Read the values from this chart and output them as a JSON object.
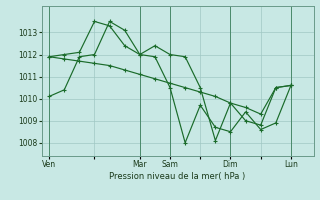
{
  "background_color": "#c8e8e4",
  "grid_color": "#a0c8c4",
  "line_color": "#1a6b2a",
  "marker_color": "#1a6b2a",
  "xlabel": "Pression niveau de la mer( hPa )",
  "ylim": [
    1007.4,
    1014.2
  ],
  "yticks": [
    1008,
    1009,
    1010,
    1011,
    1012,
    1013
  ],
  "xtick_labels": [
    "Ven",
    "",
    "Mar",
    "Sam",
    "",
    "Dim",
    "",
    "Lun"
  ],
  "xtick_positions": [
    0,
    3,
    6,
    8,
    10,
    12,
    14,
    16
  ],
  "xlim": [
    -0.5,
    17.5
  ],
  "vlines": [
    0,
    6,
    8,
    12,
    16
  ],
  "line1_x": [
    0,
    1,
    2,
    3,
    4,
    5,
    6,
    7,
    8,
    9,
    10,
    11,
    12,
    13,
    14,
    15,
    16
  ],
  "line1_y": [
    1010.1,
    1010.4,
    1011.9,
    1012.0,
    1013.5,
    1013.1,
    1012.0,
    1012.4,
    1012.0,
    1011.9,
    1010.5,
    1008.1,
    1009.8,
    1009.0,
    1008.8,
    1010.5,
    1010.6
  ],
  "line2_x": [
    0,
    1,
    2,
    3,
    4,
    5,
    6,
    7,
    8,
    9,
    10,
    11,
    12,
    13,
    14,
    15,
    16
  ],
  "line2_y": [
    1011.9,
    1011.8,
    1011.7,
    1011.6,
    1011.5,
    1011.3,
    1011.1,
    1010.9,
    1010.7,
    1010.5,
    1010.3,
    1010.1,
    1009.8,
    1009.6,
    1009.3,
    1010.5,
    1010.6
  ],
  "line3_x": [
    0,
    1,
    2,
    3,
    4,
    5,
    6,
    7,
    8,
    9,
    10,
    11,
    12,
    13,
    14,
    15,
    16
  ],
  "line3_y": [
    1011.9,
    1012.0,
    1012.1,
    1013.5,
    1013.3,
    1012.4,
    1012.0,
    1011.9,
    1010.5,
    1008.0,
    1009.7,
    1008.7,
    1008.5,
    1009.4,
    1008.6,
    1008.9,
    1010.6
  ]
}
